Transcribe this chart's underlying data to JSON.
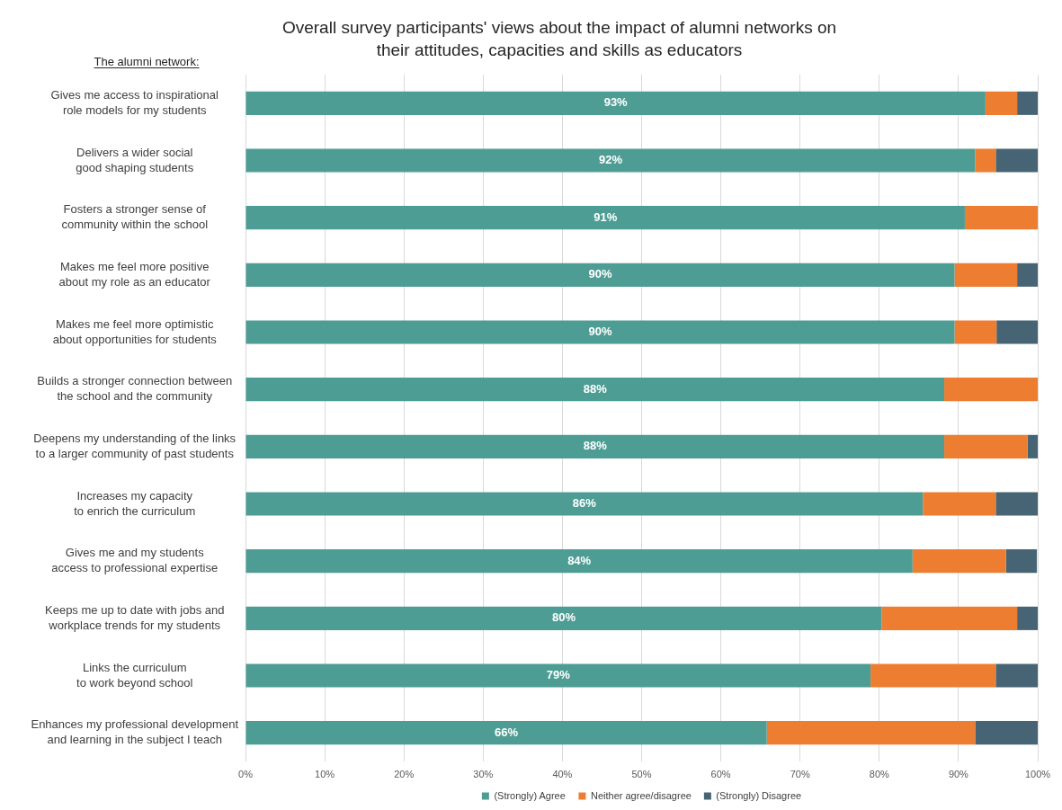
{
  "chart_data": {
    "type": "bar",
    "orientation": "horizontal",
    "stacked": true,
    "title": "Overall survey participants' views about the impact of alumni networks on their attitudes, capacities and skills as educators",
    "annotations": [
      "The alumni network:"
    ],
    "categories": [
      "Gives me access to inspirational role models for my students",
      "Delivers a wider social good shaping students",
      "Fosters a stronger sense of community within the school",
      "Makes me feel more positive about my role as an educator",
      "Makes me feel more optimistic about opportunities for students",
      "Builds a stronger connection between the school and the community",
      "Deepens my understanding of the links to a larger community of past students",
      "Increases my capacity to enrich the curriculum",
      "Gives me and my students access to professional expertise",
      "Keeps me up to date with jobs and workplace trends for my students",
      "Links the curriculum to work beyond school",
      "Enhances my professional development and learning in the subject I teach"
    ],
    "series": [
      {
        "name": "(Strongly) Agree",
        "color": "#4e9d94",
        "values": [
          93.4,
          92.1,
          90.8,
          89.5,
          89.5,
          88.2,
          88.2,
          85.5,
          84.2,
          80.3,
          78.9,
          65.8
        ],
        "value_labels": [
          "93%",
          "92%",
          "91%",
          "90%",
          "90%",
          "88%",
          "88%",
          "86%",
          "84%",
          "80%",
          "79%",
          "66%"
        ]
      },
      {
        "name": "Neither agree/disagree",
        "color": "#ed7d31",
        "values": [
          4.0,
          2.6,
          9.2,
          7.9,
          5.3,
          11.8,
          10.5,
          9.2,
          11.8,
          17.1,
          15.8,
          26.3
        ]
      },
      {
        "name": "(Strongly) Disagree",
        "color": "#466473",
        "values": [
          2.6,
          5.3,
          0,
          2.6,
          5.3,
          0,
          1.3,
          5.3,
          3.9,
          2.6,
          5.3,
          7.9
        ]
      }
    ],
    "xlim": [
      0,
      100
    ],
    "xticks": [
      {
        "value": 0,
        "label": "0%"
      },
      {
        "value": 10,
        "label": "10%"
      },
      {
        "value": 20,
        "label": "20%"
      },
      {
        "value": 30,
        "label": "30%"
      },
      {
        "value": 40,
        "label": "40%"
      },
      {
        "value": 50,
        "label": "50%"
      },
      {
        "value": 60,
        "label": "60%"
      },
      {
        "value": 70,
        "label": "70%"
      },
      {
        "value": 80,
        "label": "80%"
      },
      {
        "value": 90,
        "label": "90%"
      },
      {
        "value": 100,
        "label": "100%"
      }
    ],
    "grid": "x",
    "legend": "bottom"
  }
}
